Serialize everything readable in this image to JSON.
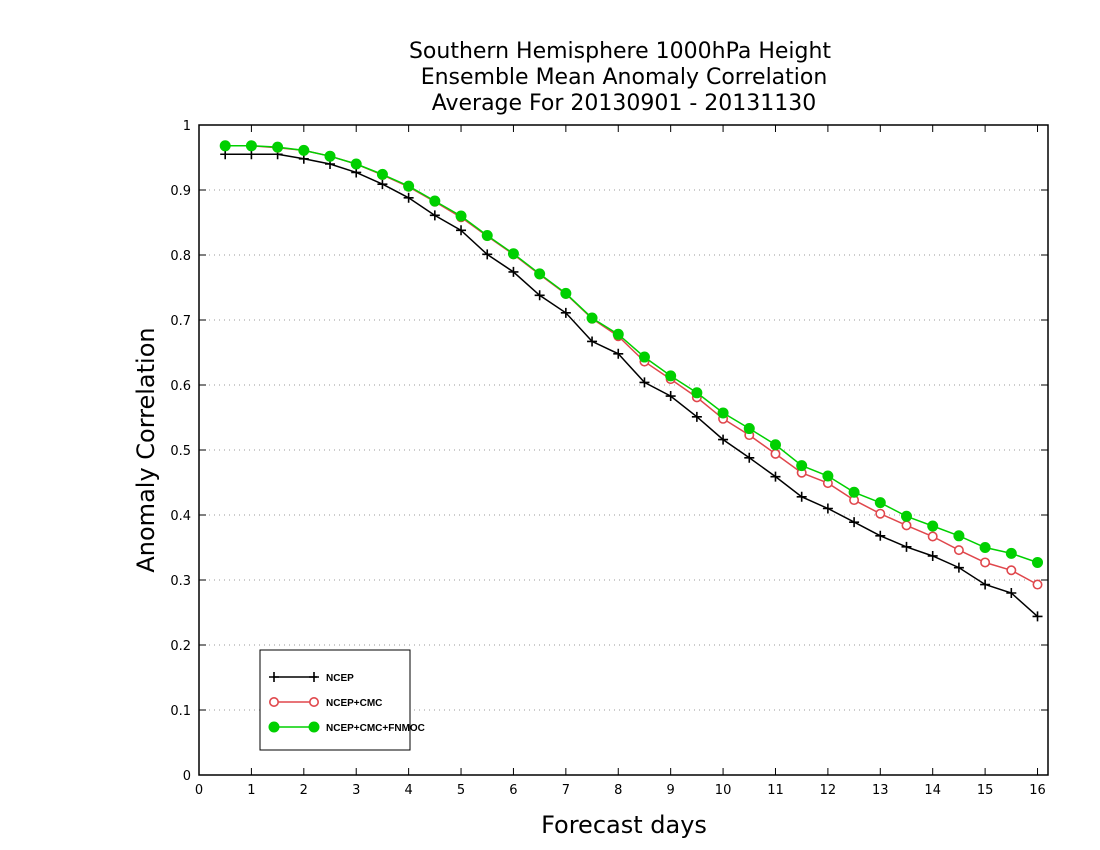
{
  "chart_data": {
    "type": "line",
    "title": [
      "Southern Hemisphere 1000hPa Height",
      "Ensemble Mean Anomaly Correlation",
      "Average For 20130901 - 20131130"
    ],
    "xlabel": "Forecast days",
    "ylabel": "Anomaly Correlation",
    "xlim": [
      0,
      16.2
    ],
    "ylim": [
      0,
      1
    ],
    "xticks": [
      0,
      1,
      2,
      3,
      4,
      5,
      6,
      7,
      8,
      9,
      10,
      11,
      12,
      13,
      14,
      15,
      16
    ],
    "yticks": [
      0,
      0.1,
      0.2,
      0.3,
      0.4,
      0.5,
      0.6,
      0.7,
      0.8,
      0.9,
      1
    ],
    "ytick_labels": [
      "0",
      "0.1",
      "0.2",
      "0.3",
      "0.4",
      "0.5",
      "0.6",
      "0.7",
      "0.8",
      "0.9",
      "1"
    ],
    "grid": "horizontal dotted",
    "legend_position": "bottom-left",
    "x": [
      0.5,
      1,
      1.5,
      2,
      2.5,
      3,
      3.5,
      4,
      4.5,
      5,
      5.5,
      6,
      6.5,
      7,
      7.5,
      8,
      8.5,
      9,
      9.5,
      10,
      10.5,
      11,
      11.5,
      12,
      12.5,
      13,
      13.5,
      14,
      14.5,
      15,
      15.5,
      16
    ],
    "series": [
      {
        "name": "NCEP",
        "color": "#000000",
        "marker": "plus",
        "values": [
          0.955,
          0.955,
          0.955,
          0.948,
          0.94,
          0.927,
          0.909,
          0.888,
          0.861,
          0.838,
          0.801,
          0.774,
          0.738,
          0.711,
          0.667,
          0.648,
          0.604,
          0.583,
          0.551,
          0.516,
          0.488,
          0.459,
          0.428,
          0.41,
          0.389,
          0.368,
          0.351,
          0.337,
          0.319,
          0.293,
          0.28,
          0.244
        ]
      },
      {
        "name": "NCEP+CMC",
        "color": "#e0474c",
        "marker": "open-circle",
        "values": [
          0.968,
          0.968,
          0.965,
          0.961,
          0.952,
          0.94,
          0.923,
          0.905,
          0.882,
          0.858,
          0.829,
          0.801,
          0.77,
          0.74,
          0.702,
          0.675,
          0.636,
          0.609,
          0.581,
          0.548,
          0.523,
          0.494,
          0.465,
          0.449,
          0.423,
          0.402,
          0.384,
          0.367,
          0.346,
          0.327,
          0.315,
          0.293
        ]
      },
      {
        "name": "NCEP+CMC+FNMOC",
        "color": "#00d000",
        "marker": "filled-circle",
        "values": [
          0.968,
          0.968,
          0.966,
          0.961,
          0.952,
          0.94,
          0.924,
          0.906,
          0.883,
          0.86,
          0.83,
          0.802,
          0.771,
          0.741,
          0.703,
          0.678,
          0.643,
          0.614,
          0.588,
          0.557,
          0.533,
          0.508,
          0.476,
          0.46,
          0.435,
          0.419,
          0.398,
          0.383,
          0.368,
          0.35,
          0.341,
          0.327
        ]
      }
    ]
  }
}
